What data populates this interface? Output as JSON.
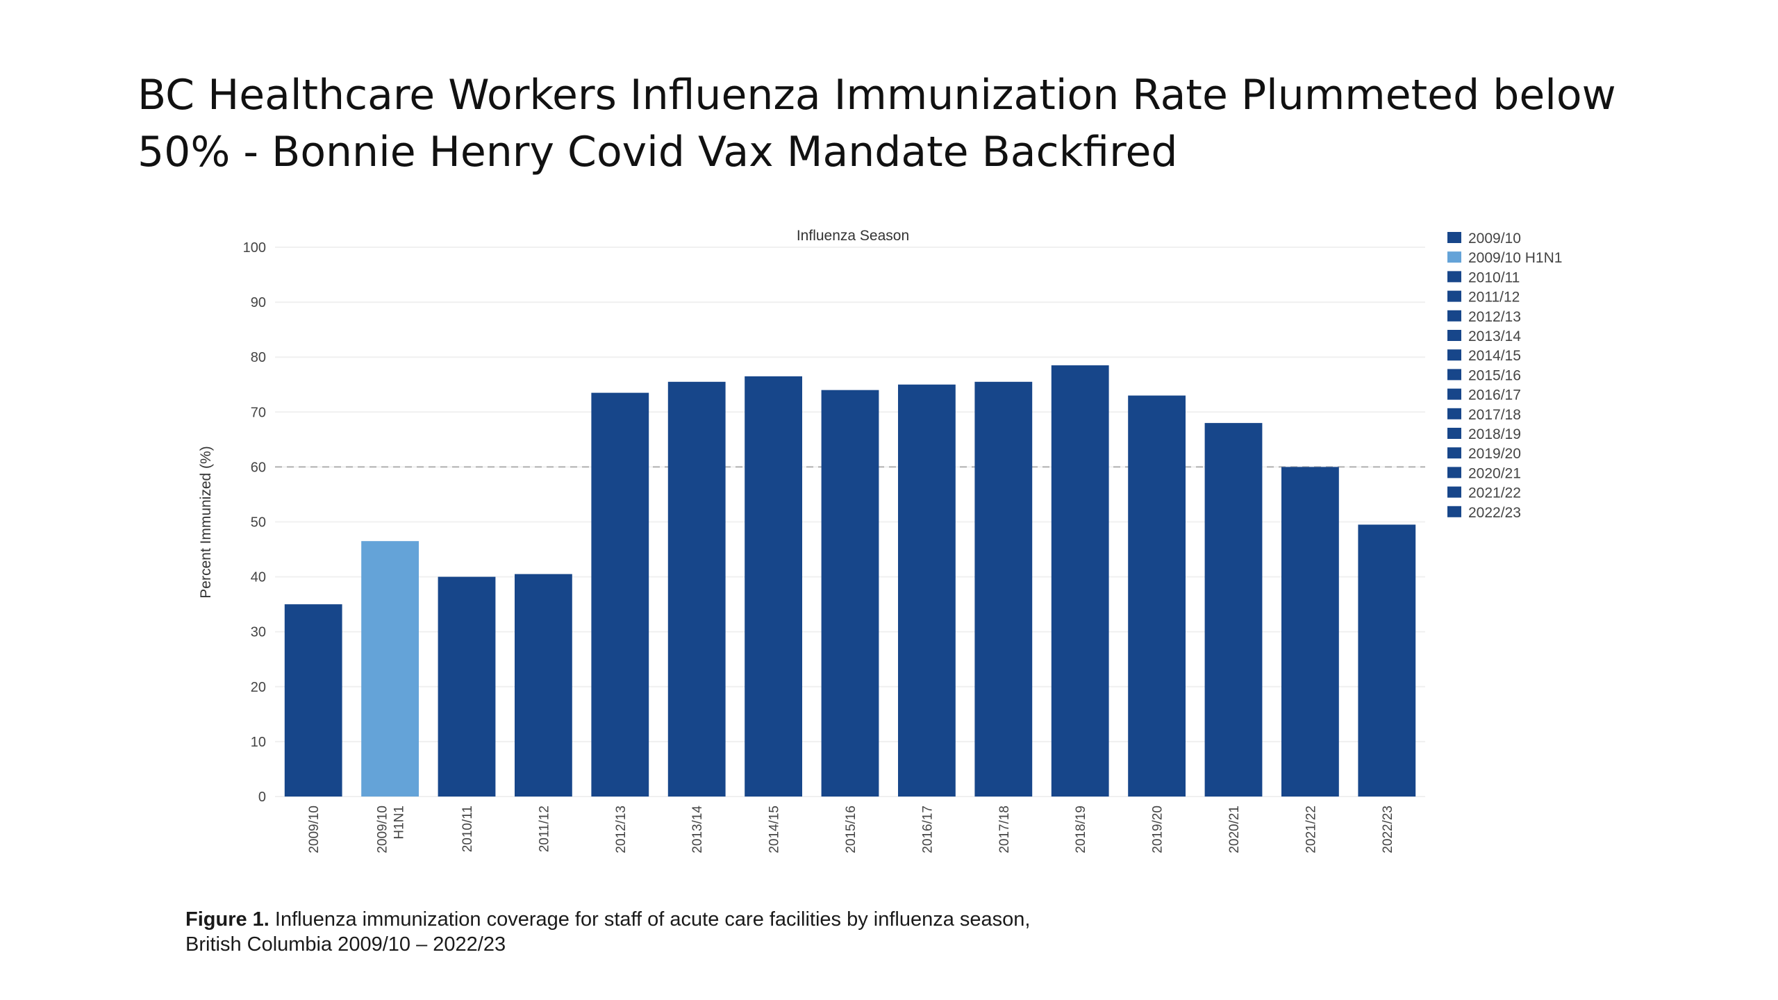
{
  "slide": {
    "title_line1": "BC Healthcare Workers Influenza Immunization Rate Plummeted below",
    "title_line2": "50% - Bonnie Henry Covid Vax Mandate Backfired"
  },
  "caption": {
    "label": "Figure 1.",
    "line1": " Influenza immunization coverage for staff of acute care facilities by influenza season,",
    "line2": "British Columbia 2009/10 – 2022/23"
  },
  "chart_data": {
    "type": "bar",
    "title": "Influenza Season",
    "xlabel": "",
    "ylabel": "Percent Immunized (%)",
    "ylim": [
      0,
      100
    ],
    "yticks": [
      0,
      10,
      20,
      30,
      40,
      50,
      60,
      70,
      80,
      90,
      100
    ],
    "reference_line": {
      "y": 60,
      "style": "dashed"
    },
    "categories": [
      "2009/10",
      "2009/10 H1N1",
      "2010/11",
      "2011/12",
      "2012/13",
      "2013/14",
      "2014/15",
      "2015/16",
      "2016/17",
      "2017/18",
      "2018/19",
      "2019/20",
      "2020/21",
      "2021/22",
      "2022/23"
    ],
    "tick_labels": [
      [
        "2009/10"
      ],
      [
        "2009/10",
        "H1N1"
      ],
      [
        "2010/11"
      ],
      [
        "2011/12"
      ],
      [
        "2012/13"
      ],
      [
        "2013/14"
      ],
      [
        "2014/15"
      ],
      [
        "2015/16"
      ],
      [
        "2016/17"
      ],
      [
        "2017/18"
      ],
      [
        "2018/19"
      ],
      [
        "2019/20"
      ],
      [
        "2020/21"
      ],
      [
        "2021/22"
      ],
      [
        "2022/23"
      ]
    ],
    "values": [
      35,
      46.5,
      40,
      40.5,
      73.5,
      75.5,
      76.5,
      74,
      75,
      75.5,
      78.5,
      73,
      68,
      60,
      49.5
    ],
    "colors": [
      "#17468a",
      "#64a3d8",
      "#17468a",
      "#17468a",
      "#17468a",
      "#17468a",
      "#17468a",
      "#17468a",
      "#17468a",
      "#17468a",
      "#17468a",
      "#17468a",
      "#17468a",
      "#17468a",
      "#17468a"
    ],
    "legend": {
      "position": "right",
      "entries": [
        "2009/10",
        "2009/10 H1N1",
        "2010/11",
        "2011/12",
        "2012/13",
        "2013/14",
        "2014/15",
        "2015/16",
        "2016/17",
        "2017/18",
        "2018/19",
        "2019/20",
        "2020/21",
        "2021/22",
        "2022/23"
      ]
    },
    "grid": true
  }
}
